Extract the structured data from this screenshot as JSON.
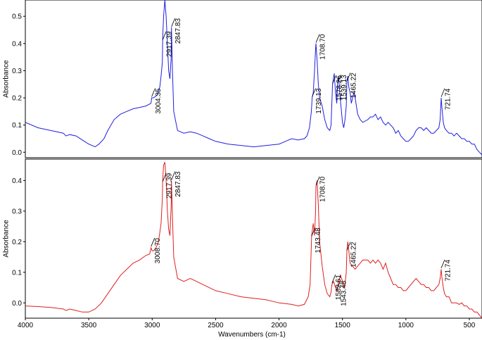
{
  "chart_data": [
    {
      "type": "line",
      "ylabel": "Absorbance",
      "xlim": [
        4000,
        400
      ],
      "ylim": [
        -0.02,
        0.56
      ],
      "yticks": [
        "0.0",
        "0.1",
        "0.2",
        "0.3",
        "0.4",
        "0.5"
      ],
      "ytick_values": [
        0.0,
        0.1,
        0.2,
        0.3,
        0.4,
        0.5
      ],
      "color": "#1f1fe0",
      "series": [
        {
          "x": [
            4000,
            3900,
            3800,
            3700,
            3680,
            3650,
            3600,
            3550,
            3500,
            3450,
            3420,
            3380,
            3350,
            3300,
            3250,
            3200,
            3150,
            3100,
            3050,
            3010,
            3004,
            2990,
            2960,
            2940,
            2930,
            2920,
            2917,
            2910,
            2900,
            2890,
            2880,
            2870,
            2860,
            2850,
            2848,
            2840,
            2830,
            2800,
            2750,
            2700,
            2650,
            2600,
            2550,
            2500,
            2400,
            2300,
            2200,
            2100,
            2000,
            1950,
            1900,
            1850,
            1800,
            1780,
            1760,
            1745,
            1739,
            1730,
            1720,
            1712,
            1709,
            1700,
            1690,
            1680,
            1660,
            1640,
            1620,
            1600,
            1590,
            1578,
            1565,
            1555,
            1545,
            1539,
            1530,
            1520,
            1510,
            1500,
            1490,
            1480,
            1470,
            1465,
            1458,
            1450,
            1440,
            1430,
            1420,
            1410,
            1400,
            1380,
            1360,
            1340,
            1300,
            1280,
            1260,
            1240,
            1220,
            1200,
            1180,
            1160,
            1140,
            1120,
            1100,
            1080,
            1060,
            1040,
            1020,
            1000,
            980,
            960,
            940,
            920,
            900,
            880,
            860,
            840,
            820,
            800,
            780,
            760,
            740,
            730,
            722,
            715,
            705,
            695,
            680,
            660,
            640,
            620,
            600,
            580,
            560,
            540,
            520,
            500,
            480,
            460,
            440,
            420,
            400
          ],
          "y": [
            0.11,
            0.09,
            0.08,
            0.07,
            0.06,
            0.065,
            0.06,
            0.045,
            0.03,
            0.02,
            0.03,
            0.05,
            0.08,
            0.12,
            0.14,
            0.15,
            0.16,
            0.165,
            0.17,
            0.18,
            0.2,
            0.2,
            0.21,
            0.24,
            0.28,
            0.33,
            0.42,
            0.5,
            0.56,
            0.5,
            0.4,
            0.3,
            0.27,
            0.35,
            0.46,
            0.3,
            0.15,
            0.08,
            0.07,
            0.075,
            0.07,
            0.06,
            0.05,
            0.04,
            0.03,
            0.025,
            0.02,
            0.025,
            0.03,
            0.04,
            0.05,
            0.045,
            0.05,
            0.06,
            0.09,
            0.15,
            0.2,
            0.22,
            0.3,
            0.38,
            0.4,
            0.34,
            0.25,
            0.2,
            0.17,
            0.12,
            0.09,
            0.08,
            0.1,
            0.25,
            0.29,
            0.22,
            0.18,
            0.25,
            0.28,
            0.21,
            0.16,
            0.11,
            0.09,
            0.12,
            0.17,
            0.26,
            0.28,
            0.24,
            0.22,
            0.18,
            0.2,
            0.22,
            0.2,
            0.14,
            0.12,
            0.11,
            0.12,
            0.13,
            0.13,
            0.14,
            0.12,
            0.13,
            0.11,
            0.1,
            0.11,
            0.1,
            0.09,
            0.07,
            0.08,
            0.06,
            0.05,
            0.04,
            0.04,
            0.05,
            0.06,
            0.08,
            0.09,
            0.09,
            0.08,
            0.09,
            0.08,
            0.07,
            0.07,
            0.08,
            0.09,
            0.12,
            0.2,
            0.16,
            0.11,
            0.09,
            0.08,
            0.07,
            0.07,
            0.06,
            0.07,
            0.06,
            0.05,
            0.05,
            0.04,
            0.04,
            0.03,
            0.03,
            0.01,
            0.0,
            -0.01
          ],
          "annotations": [
            {
              "x": 3004.35,
              "label": "3004.35"
            },
            {
              "x": 2917.39,
              "label": "2917.39"
            },
            {
              "x": 2847.83,
              "label": "2847.83"
            },
            {
              "x": 1739.13,
              "label": "1739.13"
            },
            {
              "x": 1708.7,
              "label": "1708.70"
            },
            {
              "x": 1578.26,
              "label": "1578.26"
            },
            {
              "x": 1539.13,
              "label": "1539.13"
            },
            {
              "x": 1465.22,
              "label": "1465.22"
            },
            {
              "x": 721.74,
              "label": "721.74"
            }
          ]
        }
      ]
    },
    {
      "type": "line",
      "ylabel": "Absorbance",
      "xlabel": "Wavenumbers (cm-1)",
      "xlim": [
        4000,
        400
      ],
      "ylim": [
        -0.05,
        0.47
      ],
      "xticks": [
        "4000",
        "3500",
        "3000",
        "2500",
        "2000",
        "1500",
        "1000",
        "500"
      ],
      "xtick_values": [
        4000,
        3500,
        3000,
        2500,
        2000,
        1500,
        1000,
        500
      ],
      "yticks": [
        "0.0",
        "0.1",
        "0.2",
        "0.3",
        "0.4"
      ],
      "ytick_values": [
        0.0,
        0.1,
        0.2,
        0.3,
        0.4
      ],
      "color": "#e01f1f",
      "series": [
        {
          "x": [
            4000,
            3900,
            3800,
            3700,
            3680,
            3650,
            3600,
            3550,
            3500,
            3450,
            3400,
            3350,
            3300,
            3250,
            3200,
            3150,
            3100,
            3050,
            3020,
            3009,
            3000,
            2990,
            2970,
            2950,
            2930,
            2920,
            2917,
            2910,
            2900,
            2890,
            2880,
            2870,
            2860,
            2850,
            2848,
            2840,
            2830,
            2800,
            2750,
            2700,
            2650,
            2600,
            2500,
            2400,
            2300,
            2200,
            2100,
            2000,
            1900,
            1850,
            1800,
            1770,
            1755,
            1743,
            1730,
            1720,
            1712,
            1709,
            1700,
            1690,
            1680,
            1660,
            1640,
            1620,
            1600,
            1590,
            1583,
            1570,
            1555,
            1543,
            1530,
            1515,
            1500,
            1490,
            1480,
            1470,
            1465,
            1458,
            1450,
            1440,
            1420,
            1400,
            1380,
            1360,
            1340,
            1300,
            1280,
            1260,
            1240,
            1220,
            1200,
            1180,
            1160,
            1140,
            1120,
            1100,
            1080,
            1060,
            1040,
            1020,
            1000,
            980,
            960,
            940,
            920,
            900,
            880,
            860,
            840,
            820,
            800,
            780,
            760,
            740,
            730,
            722,
            715,
            705,
            695,
            680,
            660,
            640,
            620,
            600,
            580,
            560,
            540,
            520,
            500,
            480,
            460,
            440,
            420,
            400
          ],
          "y": [
            -0.01,
            -0.012,
            -0.015,
            -0.02,
            -0.025,
            -0.02,
            -0.025,
            -0.03,
            -0.03,
            -0.02,
            0.0,
            0.03,
            0.06,
            0.09,
            0.11,
            0.13,
            0.14,
            0.155,
            0.16,
            0.18,
            0.17,
            0.17,
            0.18,
            0.2,
            0.26,
            0.34,
            0.4,
            0.45,
            0.46,
            0.4,
            0.3,
            0.24,
            0.22,
            0.32,
            0.4,
            0.28,
            0.15,
            0.08,
            0.07,
            0.08,
            0.07,
            0.06,
            0.04,
            0.03,
            0.02,
            0.015,
            0.01,
            0.0,
            -0.005,
            -0.01,
            -0.005,
            0.02,
            0.06,
            0.22,
            0.26,
            0.22,
            0.3,
            0.38,
            0.4,
            0.32,
            0.2,
            0.12,
            0.06,
            0.03,
            0.02,
            0.035,
            0.06,
            0.07,
            0.05,
            0.04,
            0.07,
            0.09,
            0.07,
            0.05,
            0.06,
            0.1,
            0.17,
            0.2,
            0.17,
            0.13,
            0.12,
            0.11,
            0.12,
            0.13,
            0.14,
            0.14,
            0.13,
            0.14,
            0.13,
            0.14,
            0.13,
            0.11,
            0.13,
            0.1,
            0.08,
            0.06,
            0.06,
            0.05,
            0.05,
            0.04,
            0.04,
            0.05,
            0.06,
            0.07,
            0.08,
            0.07,
            0.06,
            0.06,
            0.05,
            0.05,
            0.04,
            0.04,
            0.05,
            0.06,
            0.08,
            0.11,
            0.08,
            0.05,
            0.03,
            0.02,
            0.02,
            0.0,
            0.0,
            0.0,
            -0.005,
            0.0,
            -0.01,
            -0.01,
            -0.02,
            -0.02,
            -0.03,
            -0.03,
            -0.04,
            -0.05
          ],
          "annotations": [
            {
              "x": 3008.7,
              "label": "3008.70"
            },
            {
              "x": 2917.39,
              "label": "2917.39"
            },
            {
              "x": 2847.83,
              "label": "2847.83"
            },
            {
              "x": 1743.48,
              "label": "1743.48"
            },
            {
              "x": 1708.7,
              "label": "1708.70"
            },
            {
              "x": 1582.61,
              "label": "1582.61"
            },
            {
              "x": 1543.48,
              "label": "1543.48"
            },
            {
              "x": 1465.22,
              "label": "1465.22"
            },
            {
              "x": 721.74,
              "label": "721.74"
            }
          ]
        }
      ]
    }
  ]
}
